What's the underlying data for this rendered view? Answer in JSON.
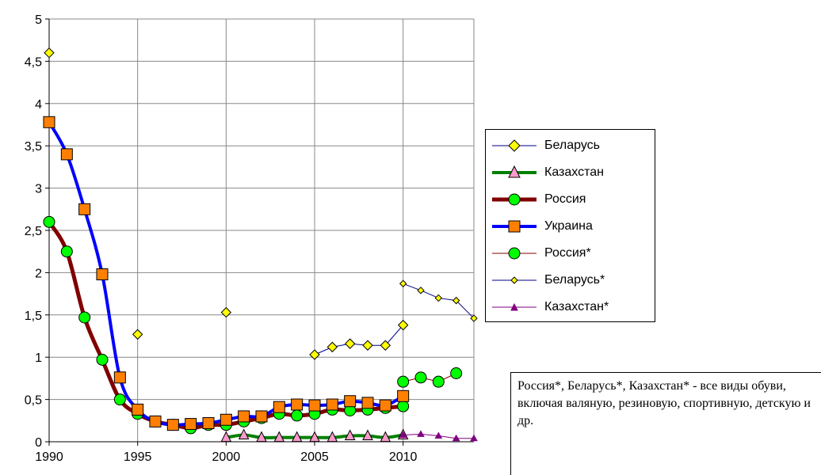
{
  "chart_data": {
    "type": "line",
    "title": "",
    "xlabel": "",
    "ylabel": "",
    "xlim": [
      1990,
      2014
    ],
    "ylim": [
      0,
      5
    ],
    "y_ticks": [
      "0",
      "0,5",
      "1",
      "1,5",
      "2",
      "2,5",
      "3",
      "3,5",
      "4",
      "4,5",
      "5"
    ],
    "x_ticks": [
      "1990",
      "1995",
      "2000",
      "2005",
      "2010"
    ],
    "grid": true,
    "legend_position": "right",
    "series": [
      {
        "name": "Беларусь",
        "color": "#00008B",
        "marker": "diamond-yellow",
        "line": "none",
        "x": [
          1990,
          1995,
          2000,
          2005,
          2006,
          2007,
          2008,
          2009,
          2010
        ],
        "y": [
          4.6,
          1.27,
          1.53,
          1.03,
          1.12,
          1.16,
          1.14,
          1.14,
          1.38
        ]
      },
      {
        "name": "Казахстан",
        "color": "#008000",
        "marker": "triangle-pink",
        "line": "thick",
        "x": [
          2000,
          2001,
          2002,
          2003,
          2004,
          2005,
          2006,
          2007,
          2008,
          2009,
          2010
        ],
        "y": [
          0.05,
          0.08,
          0.05,
          0.05,
          0.05,
          0.05,
          0.05,
          0.07,
          0.07,
          0.05,
          0.08
        ]
      },
      {
        "name": "Россия",
        "color": "#800000",
        "marker": "circle-green",
        "line": "thick",
        "x": [
          1990,
          1991,
          1992,
          1993,
          1994,
          1995,
          1996,
          1997,
          1998,
          1999,
          2000,
          2001,
          2002,
          2003,
          2004,
          2005,
          2006,
          2007,
          2008,
          2009,
          2010
        ],
        "y": [
          2.6,
          2.25,
          1.47,
          0.97,
          0.5,
          0.33,
          0.24,
          0.2,
          0.16,
          0.2,
          0.2,
          0.24,
          0.28,
          0.33,
          0.31,
          0.33,
          0.38,
          0.37,
          0.38,
          0.4,
          0.42
        ]
      },
      {
        "name": "Украина",
        "color": "#0000FF",
        "marker": "square-orange",
        "line": "thick",
        "x": [
          1990,
          1991,
          1992,
          1993,
          1994,
          1995,
          1996,
          1997,
          1998,
          1999,
          2000,
          2001,
          2002,
          2003,
          2004,
          2005,
          2006,
          2007,
          2008,
          2009,
          2010
        ],
        "y": [
          3.78,
          3.4,
          2.75,
          1.98,
          0.76,
          0.38,
          0.24,
          0.2,
          0.21,
          0.22,
          0.26,
          0.3,
          0.3,
          0.41,
          0.44,
          0.43,
          0.44,
          0.48,
          0.46,
          0.43,
          0.54
        ]
      },
      {
        "name": "Россия*",
        "color": "#800000",
        "marker": "circle-green",
        "line": "thin",
        "x": [
          2010,
          2011,
          2012,
          2013
        ],
        "y": [
          0.71,
          0.76,
          0.71,
          0.81
        ]
      },
      {
        "name": "Беларусь*",
        "color": "#00008B",
        "marker": "small-diamond",
        "line": "thin",
        "x": [
          2010,
          2011,
          2012,
          2013,
          2014
        ],
        "y": [
          1.87,
          1.79,
          1.7,
          1.67,
          1.46
        ]
      },
      {
        "name": "Казахстан*",
        "color": "#800080",
        "marker": "small-triangle",
        "line": "thin",
        "x": [
          2010,
          2011,
          2012,
          2013,
          2014
        ],
        "y": [
          0.08,
          0.09,
          0.07,
          0.04,
          0.04
        ]
      }
    ]
  },
  "legend": {
    "items": [
      {
        "label": "Беларусь"
      },
      {
        "label": "Казахстан"
      },
      {
        "label": "Россия"
      },
      {
        "label": "Украина"
      },
      {
        "label": "Россия*"
      },
      {
        "label": "Беларусь*"
      },
      {
        "label": "Казахстан*"
      }
    ]
  },
  "note": {
    "text": "Россия*, Беларусь*, Казахстан* - все виды обуви, включая валяную, резиновую, спортивную, детскую и др."
  }
}
